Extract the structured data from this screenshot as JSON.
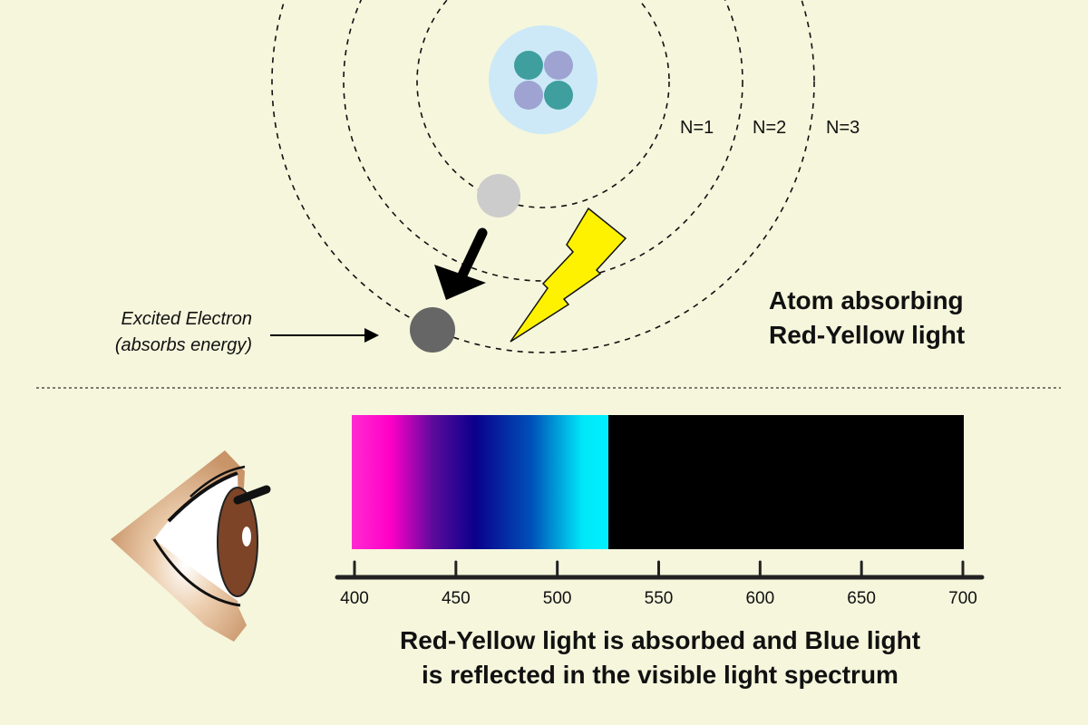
{
  "atom": {
    "orbit_labels": [
      "N=1",
      "N=2",
      "N=3"
    ],
    "title_lines": [
      "Atom absorbing",
      "Red-Yellow light"
    ],
    "electron_label_lines": [
      "Excited Electron",
      "(absorbs energy)"
    ]
  },
  "spectrum": {
    "tick_labels": [
      "400",
      "450",
      "500",
      "550",
      "600",
      "650",
      "700"
    ],
    "range_nm": [
      400,
      700
    ],
    "reflected_range_nm": [
      400,
      524
    ],
    "absorbed_color": "#000000"
  },
  "caption_lines": [
    "Red-Yellow light is absorbed and Blue light",
    "is reflected in the visible light spectrum"
  ],
  "colors": {
    "background": "#f5f6dc",
    "nucleus": "#cde9f7",
    "proton": "#3f9e9e",
    "neutron": "#9ea3d1",
    "ground_electron": "#cccccc",
    "excited_electron": "#666666",
    "lightning": "#fff200"
  }
}
